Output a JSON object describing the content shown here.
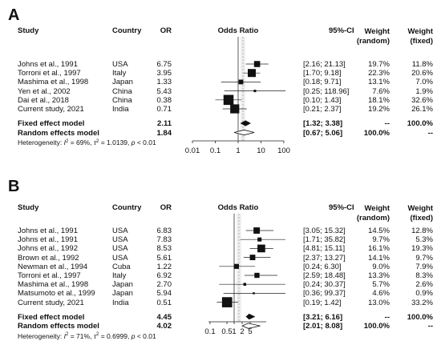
{
  "chart_data": [
    {
      "type": "forest",
      "panel_label": "A",
      "headers": {
        "study": "Study",
        "country": "Country",
        "or": "OR",
        "plot": "Odds Ratio",
        "ci": "95%-CI",
        "weight_random": [
          "Weight",
          "(random)"
        ],
        "weight_fixed": [
          "Weight",
          "(fixed)"
        ]
      },
      "scale": "log",
      "xlim": [
        0.01,
        100
      ],
      "xticks": [
        0.01,
        0.1,
        1,
        10,
        100
      ],
      "xtick_labels": [
        "0.01",
        "0.1",
        "1",
        "10",
        "100"
      ],
      "studies": [
        {
          "study": "Johns et al., 1991",
          "country": "USA",
          "or": 6.75,
          "or_text": "6.75",
          "lower": 2.16,
          "upper": 21.13,
          "ci_text": "[2.16; 21.13]",
          "w_random": "19.7%",
          "w_fixed": "11.8%"
        },
        {
          "study": "Torroni et al., 1997",
          "country": "Italy",
          "or": 3.95,
          "or_text": "3.95",
          "lower": 1.7,
          "upper": 9.18,
          "ci_text": "[1.70; 9.18]",
          "w_random": "22.3%",
          "w_fixed": "20.6%"
        },
        {
          "study": "Mashima et al., 1998",
          "country": "Japan",
          "or": 1.33,
          "or_text": "1.33",
          "lower": 0.18,
          "upper": 9.71,
          "ci_text": "[0.18; 9.71]",
          "w_random": "13.1%",
          "w_fixed": "7.0%"
        },
        {
          "study": "Yen et al., 2002",
          "country": "China",
          "or": 5.43,
          "or_text": "5.43",
          "lower": 0.25,
          "upper": 118.96,
          "ci_text": "[0.25; 118.96]",
          "w_random": "7.6%",
          "w_fixed": "1.9%"
        },
        {
          "study": "Dai et al., 2018",
          "country": "China",
          "or": 0.38,
          "or_text": "0.38",
          "lower": 0.1,
          "upper": 1.43,
          "ci_text": "[0.10; 1.43]",
          "w_random": "18.1%",
          "w_fixed": "32.6%"
        },
        {
          "study": "Current study, 2021",
          "country": "India",
          "or": 0.71,
          "or_text": "0.71",
          "lower": 0.21,
          "upper": 2.37,
          "ci_text": "[0.21; 2.37]",
          "w_random": "19.2%",
          "w_fixed": "26.1%"
        }
      ],
      "summary": [
        {
          "label": "Fixed effect model",
          "or": 2.11,
          "or_text": "2.11",
          "lower": 1.32,
          "upper": 3.38,
          "ci_text": "[1.32; 3.38]",
          "w_random": "--",
          "w_fixed": "100.0%"
        },
        {
          "label": "Random effects model",
          "or": 1.84,
          "or_text": "1.84",
          "lower": 0.67,
          "upper": 5.06,
          "ci_text": "[0.67; 5.06]",
          "w_random": "100.0%",
          "w_fixed": "--"
        }
      ],
      "heterogeneity": {
        "prefix": "Heterogeneity: ",
        "i2_sym": "I",
        "i2_sup": "2",
        "i2_val": " = 69%, ",
        "tau_sym": "τ",
        "tau_sup": "2",
        "tau_val": " = 1.0139, ",
        "p_sym": "p",
        "p_val": " < 0.01"
      }
    },
    {
      "type": "forest",
      "panel_label": "B",
      "headers": {
        "study": "Study",
        "country": "Country",
        "or": "OR",
        "plot": "Odds Ratio",
        "ci": "95%-CI",
        "weight_random": [
          "Weight",
          "(random)"
        ],
        "weight_fixed": [
          "Weight",
          "(fixed)"
        ]
      },
      "scale": "log",
      "xlim": [
        0.1,
        10
      ],
      "xticks": [
        0.1,
        0.5,
        1,
        2,
        5
      ],
      "xtick_labels": [
        "0.1",
        "0.5",
        "1",
        "2",
        "5"
      ],
      "studies": [
        {
          "study": "Johns et al., 1991",
          "country": "USA",
          "or": 6.83,
          "or_text": "6.83",
          "lower": 3.05,
          "upper": 15.32,
          "ci_text": "[3.05; 15.32]",
          "w_random": "14.5%",
          "w_fixed": "12.8%"
        },
        {
          "study": "Johns et al., 1991",
          "country": "USA",
          "or": 7.83,
          "or_text": "7.83",
          "lower": 1.71,
          "upper": 35.82,
          "ci_text": "[1.71; 35.82]",
          "w_random": "9.7%",
          "w_fixed": "5.3%"
        },
        {
          "study": "Johns et al., 1992",
          "country": "USA",
          "or": 8.53,
          "or_text": "8.53",
          "lower": 4.81,
          "upper": 15.11,
          "ci_text": "[4.81; 15.11]",
          "w_random": "16.1%",
          "w_fixed": "19.3%"
        },
        {
          "study": "Brown et al., 1992",
          "country": "USA",
          "or": 5.61,
          "or_text": "5.61",
          "lower": 2.37,
          "upper": 13.27,
          "ci_text": "[2.37; 13.27]",
          "w_random": "14.1%",
          "w_fixed": "9.7%"
        },
        {
          "study": "Newman et al., 1994",
          "country": "Cuba",
          "or": 1.22,
          "or_text": "1.22",
          "lower": 0.24,
          "upper": 6.3,
          "ci_text": "[0.24; 6.30]",
          "w_random": "9.0%",
          "w_fixed": "7.9%"
        },
        {
          "study": "Torroni et al., 1997",
          "country": "Italy",
          "or": 6.92,
          "or_text": "6.92",
          "lower": 2.59,
          "upper": 18.48,
          "ci_text": "[2.59; 18.48]",
          "w_random": "13.3%",
          "w_fixed": "8.3%"
        },
        {
          "study": "Mashima et al., 1998",
          "country": "Japan",
          "or": 2.7,
          "or_text": "2.70",
          "lower": 0.24,
          "upper": 30.37,
          "ci_text": "[0.24; 30.37]",
          "w_random": "5.7%",
          "w_fixed": "2.6%"
        },
        {
          "study": "Matsumoto et al., 1999",
          "country": "Japan",
          "or": 5.94,
          "or_text": "5.94",
          "lower": 0.36,
          "upper": 99.37,
          "ci_text": "[0.36; 99.37]",
          "w_random": "4.6%",
          "w_fixed": "0.9%"
        },
        {
          "study": "Current study, 2021",
          "country": "India",
          "or": 0.51,
          "or_text": "0.51",
          "lower": 0.19,
          "upper": 1.42,
          "ci_text": "[0.19; 1.42]",
          "w_random": "13.0%",
          "w_fixed": "33.2%"
        }
      ],
      "summary": [
        {
          "label": "Fixed effect model",
          "or": 4.45,
          "or_text": "4.45",
          "lower": 3.21,
          "upper": 6.16,
          "ci_text": "[3.21; 6.16]",
          "w_random": "--",
          "w_fixed": "100.0%"
        },
        {
          "label": "Random effects model",
          "or": 4.02,
          "or_text": "4.02",
          "lower": 2.01,
          "upper": 8.08,
          "ci_text": "[2.01; 8.08]",
          "w_random": "100.0%",
          "w_fixed": "--"
        }
      ],
      "heterogeneity": {
        "prefix": "Heterogeneity: ",
        "i2_sym": "I",
        "i2_sup": "2",
        "i2_val": " = 71%, ",
        "tau_sym": "τ",
        "tau_sup": "2",
        "tau_val": " = 0.6999, ",
        "p_sym": "p",
        "p_val": " < 0.01"
      }
    }
  ]
}
